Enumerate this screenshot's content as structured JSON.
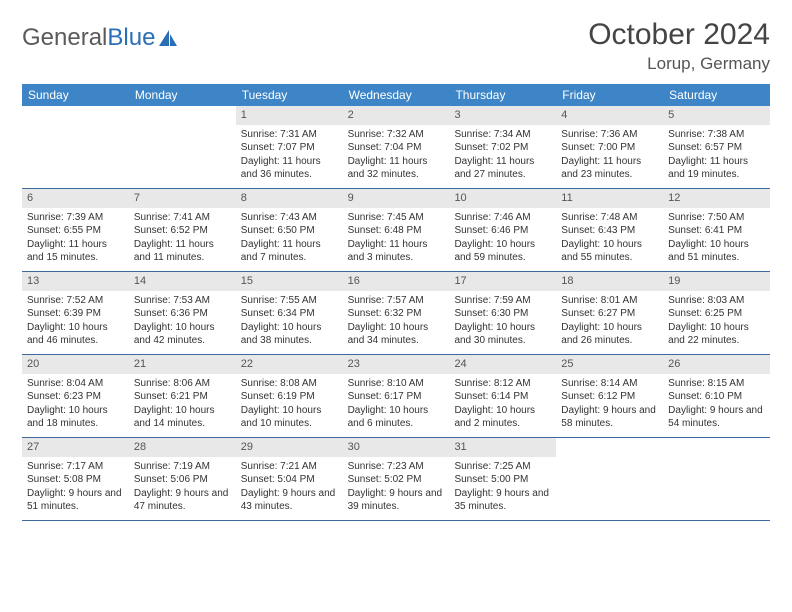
{
  "brand": {
    "part1": "General",
    "part2": "Blue"
  },
  "title": "October 2024",
  "location": "Lorup, Germany",
  "colors": {
    "header_bg": "#3d85c6",
    "header_text": "#ffffff",
    "daynum_bg": "#e8e8e8",
    "week_border": "#3d6a9a",
    "text": "#333333",
    "brand_gray": "#5a5a5a",
    "brand_blue": "#2a6fb5"
  },
  "day_headers": [
    "Sunday",
    "Monday",
    "Tuesday",
    "Wednesday",
    "Thursday",
    "Friday",
    "Saturday"
  ],
  "weeks": [
    [
      {
        "blank": true
      },
      {
        "blank": true
      },
      {
        "n": "1",
        "sunrise": "Sunrise: 7:31 AM",
        "sunset": "Sunset: 7:07 PM",
        "daylight": "Daylight: 11 hours and 36 minutes."
      },
      {
        "n": "2",
        "sunrise": "Sunrise: 7:32 AM",
        "sunset": "Sunset: 7:04 PM",
        "daylight": "Daylight: 11 hours and 32 minutes."
      },
      {
        "n": "3",
        "sunrise": "Sunrise: 7:34 AM",
        "sunset": "Sunset: 7:02 PM",
        "daylight": "Daylight: 11 hours and 27 minutes."
      },
      {
        "n": "4",
        "sunrise": "Sunrise: 7:36 AM",
        "sunset": "Sunset: 7:00 PM",
        "daylight": "Daylight: 11 hours and 23 minutes."
      },
      {
        "n": "5",
        "sunrise": "Sunrise: 7:38 AM",
        "sunset": "Sunset: 6:57 PM",
        "daylight": "Daylight: 11 hours and 19 minutes."
      }
    ],
    [
      {
        "n": "6",
        "sunrise": "Sunrise: 7:39 AM",
        "sunset": "Sunset: 6:55 PM",
        "daylight": "Daylight: 11 hours and 15 minutes."
      },
      {
        "n": "7",
        "sunrise": "Sunrise: 7:41 AM",
        "sunset": "Sunset: 6:52 PM",
        "daylight": "Daylight: 11 hours and 11 minutes."
      },
      {
        "n": "8",
        "sunrise": "Sunrise: 7:43 AM",
        "sunset": "Sunset: 6:50 PM",
        "daylight": "Daylight: 11 hours and 7 minutes."
      },
      {
        "n": "9",
        "sunrise": "Sunrise: 7:45 AM",
        "sunset": "Sunset: 6:48 PM",
        "daylight": "Daylight: 11 hours and 3 minutes."
      },
      {
        "n": "10",
        "sunrise": "Sunrise: 7:46 AM",
        "sunset": "Sunset: 6:46 PM",
        "daylight": "Daylight: 10 hours and 59 minutes."
      },
      {
        "n": "11",
        "sunrise": "Sunrise: 7:48 AM",
        "sunset": "Sunset: 6:43 PM",
        "daylight": "Daylight: 10 hours and 55 minutes."
      },
      {
        "n": "12",
        "sunrise": "Sunrise: 7:50 AM",
        "sunset": "Sunset: 6:41 PM",
        "daylight": "Daylight: 10 hours and 51 minutes."
      }
    ],
    [
      {
        "n": "13",
        "sunrise": "Sunrise: 7:52 AM",
        "sunset": "Sunset: 6:39 PM",
        "daylight": "Daylight: 10 hours and 46 minutes."
      },
      {
        "n": "14",
        "sunrise": "Sunrise: 7:53 AM",
        "sunset": "Sunset: 6:36 PM",
        "daylight": "Daylight: 10 hours and 42 minutes."
      },
      {
        "n": "15",
        "sunrise": "Sunrise: 7:55 AM",
        "sunset": "Sunset: 6:34 PM",
        "daylight": "Daylight: 10 hours and 38 minutes."
      },
      {
        "n": "16",
        "sunrise": "Sunrise: 7:57 AM",
        "sunset": "Sunset: 6:32 PM",
        "daylight": "Daylight: 10 hours and 34 minutes."
      },
      {
        "n": "17",
        "sunrise": "Sunrise: 7:59 AM",
        "sunset": "Sunset: 6:30 PM",
        "daylight": "Daylight: 10 hours and 30 minutes."
      },
      {
        "n": "18",
        "sunrise": "Sunrise: 8:01 AM",
        "sunset": "Sunset: 6:27 PM",
        "daylight": "Daylight: 10 hours and 26 minutes."
      },
      {
        "n": "19",
        "sunrise": "Sunrise: 8:03 AM",
        "sunset": "Sunset: 6:25 PM",
        "daylight": "Daylight: 10 hours and 22 minutes."
      }
    ],
    [
      {
        "n": "20",
        "sunrise": "Sunrise: 8:04 AM",
        "sunset": "Sunset: 6:23 PM",
        "daylight": "Daylight: 10 hours and 18 minutes."
      },
      {
        "n": "21",
        "sunrise": "Sunrise: 8:06 AM",
        "sunset": "Sunset: 6:21 PM",
        "daylight": "Daylight: 10 hours and 14 minutes."
      },
      {
        "n": "22",
        "sunrise": "Sunrise: 8:08 AM",
        "sunset": "Sunset: 6:19 PM",
        "daylight": "Daylight: 10 hours and 10 minutes."
      },
      {
        "n": "23",
        "sunrise": "Sunrise: 8:10 AM",
        "sunset": "Sunset: 6:17 PM",
        "daylight": "Daylight: 10 hours and 6 minutes."
      },
      {
        "n": "24",
        "sunrise": "Sunrise: 8:12 AM",
        "sunset": "Sunset: 6:14 PM",
        "daylight": "Daylight: 10 hours and 2 minutes."
      },
      {
        "n": "25",
        "sunrise": "Sunrise: 8:14 AM",
        "sunset": "Sunset: 6:12 PM",
        "daylight": "Daylight: 9 hours and 58 minutes."
      },
      {
        "n": "26",
        "sunrise": "Sunrise: 8:15 AM",
        "sunset": "Sunset: 6:10 PM",
        "daylight": "Daylight: 9 hours and 54 minutes."
      }
    ],
    [
      {
        "n": "27",
        "sunrise": "Sunrise: 7:17 AM",
        "sunset": "Sunset: 5:08 PM",
        "daylight": "Daylight: 9 hours and 51 minutes."
      },
      {
        "n": "28",
        "sunrise": "Sunrise: 7:19 AM",
        "sunset": "Sunset: 5:06 PM",
        "daylight": "Daylight: 9 hours and 47 minutes."
      },
      {
        "n": "29",
        "sunrise": "Sunrise: 7:21 AM",
        "sunset": "Sunset: 5:04 PM",
        "daylight": "Daylight: 9 hours and 43 minutes."
      },
      {
        "n": "30",
        "sunrise": "Sunrise: 7:23 AM",
        "sunset": "Sunset: 5:02 PM",
        "daylight": "Daylight: 9 hours and 39 minutes."
      },
      {
        "n": "31",
        "sunrise": "Sunrise: 7:25 AM",
        "sunset": "Sunset: 5:00 PM",
        "daylight": "Daylight: 9 hours and 35 minutes."
      },
      {
        "blank": true
      },
      {
        "blank": true
      }
    ]
  ]
}
